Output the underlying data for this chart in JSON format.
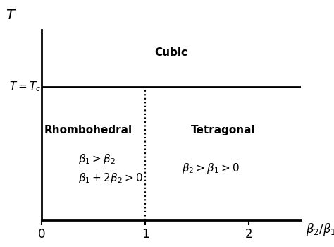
{
  "title_y": "T",
  "title_x": "\\beta_2 / \\beta_1",
  "label_Tc": "T = T_c",
  "label_cubic": "Cubic",
  "label_rhombo": "Rhombohedral",
  "label_tetra": "Tetragonal",
  "condition_left_1": "\\beta_1 > \\beta_2",
  "condition_left_2": "\\beta_1 + 2\\beta_2 > 0",
  "condition_right": "\\beta_2 > \\beta_1 > 0",
  "xlim": [
    0,
    2.5
  ],
  "ylim": [
    0,
    10
  ],
  "Tc_y": 7.0,
  "MPB_x": 1.0,
  "xticks": [
    0,
    1,
    2
  ],
  "background_color": "#ffffff",
  "line_color": "#000000",
  "dotted_line_color": "#000000"
}
